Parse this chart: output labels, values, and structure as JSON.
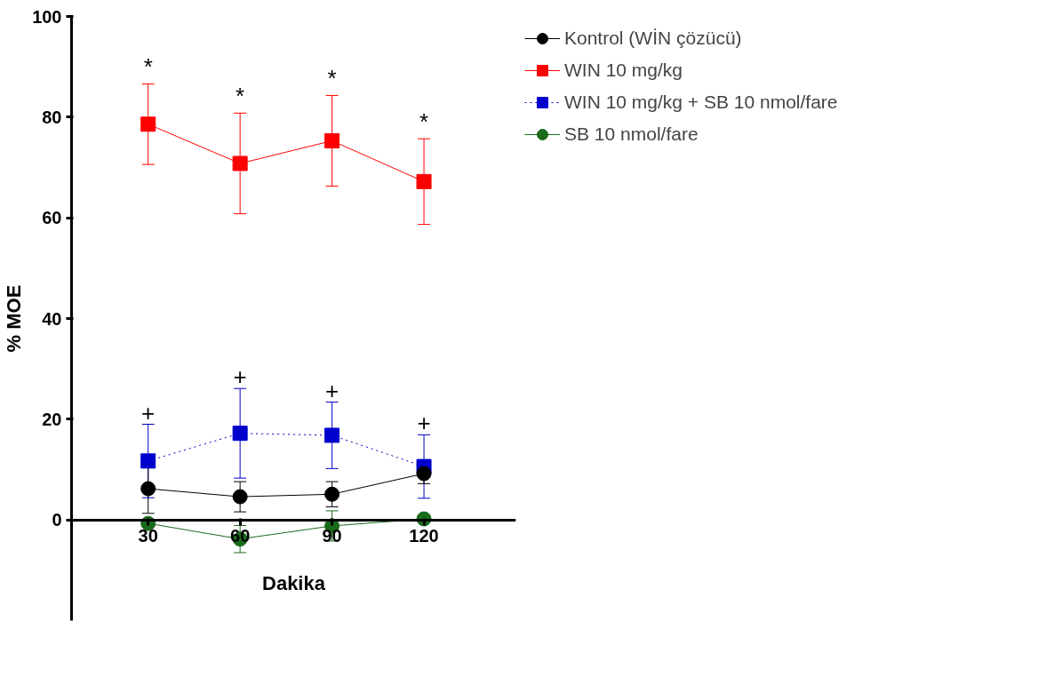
{
  "chart_data": {
    "type": "line",
    "xlabel": "Dakika",
    "ylabel": "% MOE",
    "x": [
      30,
      60,
      90,
      120
    ],
    "xlim": [
      5,
      150
    ],
    "xticks": [
      30,
      60,
      90,
      120
    ],
    "ylim": [
      -20,
      100
    ],
    "yticks": [
      0,
      20,
      40,
      60,
      80,
      100
    ],
    "grid": false,
    "legend": "top right",
    "series": [
      {
        "name": "Kontrol (WİN çözücü)",
        "color": "#000000",
        "marker": "circle",
        "line_style": "solid",
        "values": [
          6.2,
          4.6,
          5.1,
          9.2
        ],
        "errors": [
          4.9,
          3.0,
          2.5,
          2.0
        ]
      },
      {
        "name": "WIN 10 mg/kg",
        "color": "#ff0000",
        "marker": "square",
        "line_style": "solid",
        "values": [
          78.6,
          70.8,
          75.3,
          67.2
        ],
        "errors": [
          8.0,
          10.0,
          9.0,
          8.5
        ]
      },
      {
        "name": "WIN 10 mg/kg + SB 10 nmol/fare",
        "color": "#0000cc",
        "marker": "square",
        "line_style": "dotted",
        "values": [
          11.7,
          17.2,
          16.8,
          10.6
        ],
        "errors": [
          7.3,
          8.9,
          6.6,
          6.3
        ]
      },
      {
        "name": "SB 10 nmol/fare",
        "color": "#1a6b1a",
        "marker": "circle",
        "line_style": "solid",
        "values": [
          -0.7,
          -3.8,
          -1.2,
          0.2
        ],
        "errors": [
          null,
          2.7,
          3.0,
          null
        ]
      }
    ],
    "annotations": [
      "*",
      "*",
      "*",
      "*",
      "+",
      "+",
      "+",
      "+"
    ]
  }
}
